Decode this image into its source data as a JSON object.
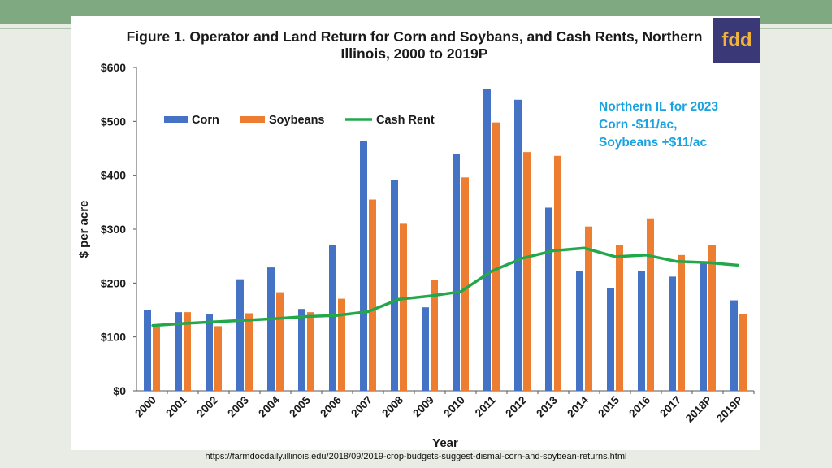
{
  "logo_text": "fdd",
  "note_lines": [
    "Northern IL for 2023",
    "Corn -$11/ac,",
    "Soybeans +$11/ac"
  ],
  "source_url": "https://farmdocdaily.illinois.edu/2018/09/2019-crop-budgets-suggest-dismal-corn-and-soybean-returns.html",
  "colors": {
    "corn": "#4472c4",
    "soybeans": "#ed7d31",
    "cash_rent": "#22a84a",
    "note": "#1aa3e0",
    "logo_bg": "#3b3878",
    "logo_text": "#f2b33c"
  },
  "chart_data": {
    "type": "bar",
    "title": "Figure 1. Operator and Land Return for Corn and Soybans, and Cash Rents, Northern Illinois,  2000 to 2019P",
    "xlabel": "Year",
    "ylabel": "$ per acre",
    "ylim": [
      0,
      600
    ],
    "yticks": [
      "$0",
      "$100",
      "$200",
      "$300",
      "$400",
      "$500",
      "$600"
    ],
    "categories": [
      "2000",
      "2001",
      "2002",
      "2003",
      "2004",
      "2005",
      "2006",
      "2007",
      "2008",
      "2009",
      "2010",
      "2011",
      "2012",
      "2013",
      "2014",
      "2015",
      "2016",
      "2017",
      "2018P",
      "2019P"
    ],
    "series": [
      {
        "name": "Corn",
        "type": "bar",
        "values": [
          150,
          146,
          142,
          207,
          229,
          152,
          270,
          463,
          391,
          155,
          440,
          560,
          540,
          340,
          222,
          190,
          222,
          212,
          240,
          168
        ]
      },
      {
        "name": "Soybeans",
        "type": "bar",
        "values": [
          118,
          146,
          120,
          144,
          183,
          146,
          171,
          355,
          310,
          205,
          396,
          498,
          443,
          436,
          305,
          270,
          320,
          252,
          270,
          142
        ]
      },
      {
        "name": "Cash Rent",
        "type": "line",
        "values": [
          121,
          125,
          128,
          131,
          134,
          138,
          140,
          147,
          170,
          176,
          184,
          222,
          246,
          260,
          265,
          249,
          252,
          240,
          238,
          233
        ]
      }
    ],
    "legend_position": "top-left",
    "grid": false
  }
}
